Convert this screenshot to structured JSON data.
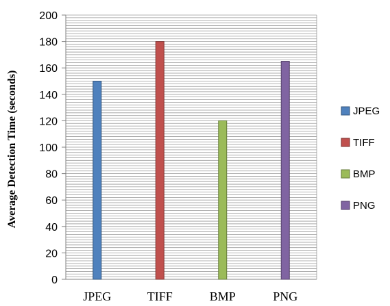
{
  "chart_data": {
    "type": "bar",
    "categories": [
      "JPEG",
      "TIFF",
      "BMP",
      "PNG"
    ],
    "values": [
      150,
      180,
      120,
      165
    ],
    "colors": [
      "#4F81BD",
      "#C0504D",
      "#9BBB59",
      "#8064A2"
    ],
    "ylabel": "Average Detection Time (seconds)",
    "xlabel": "",
    "ylim": [
      0,
      200
    ],
    "yticks": [
      0,
      20,
      40,
      60,
      80,
      100,
      120,
      140,
      160,
      180,
      200
    ],
    "legend": [
      "JPEG",
      "TIFF",
      "BMP",
      "PNG"
    ],
    "legend_position": "right",
    "grid": true
  }
}
